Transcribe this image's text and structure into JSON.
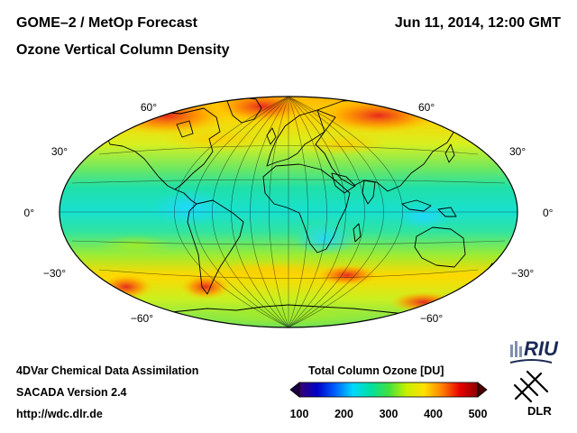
{
  "header": {
    "title_line1": "GOME–2 / MetOp Forecast",
    "title_line2": "Ozone Vertical Column Density",
    "datetime": "Jun 11, 2014, 12:00 GMT"
  },
  "map": {
    "projection": "Hammer-Aitoff global",
    "lat_labels_left": [
      "60°",
      "30°",
      "0°",
      "−30°",
      "−60°"
    ],
    "lat_labels_right": [
      "60°",
      "30°",
      "0°",
      "−30°",
      "−60°"
    ]
  },
  "colorbar": {
    "title": "Total Column Ozone [DU]",
    "ticks": [
      "100",
      "200",
      "300",
      "400",
      "500"
    ],
    "min": 100,
    "max": 500,
    "colors": [
      "#3a0070",
      "#0000c8",
      "#0060ff",
      "#00d8ff",
      "#00e0a0",
      "#40e040",
      "#c8f000",
      "#ffe000",
      "#ff8000",
      "#e80000",
      "#8a0000"
    ]
  },
  "footer": {
    "line1": "4DVar Chemical Data Assimilation",
    "line2": "SACADA Version 2.4",
    "line3": "http://wdc.dlr.de"
  },
  "logos": {
    "riu": "RIU",
    "dlr": "DLR"
  }
}
